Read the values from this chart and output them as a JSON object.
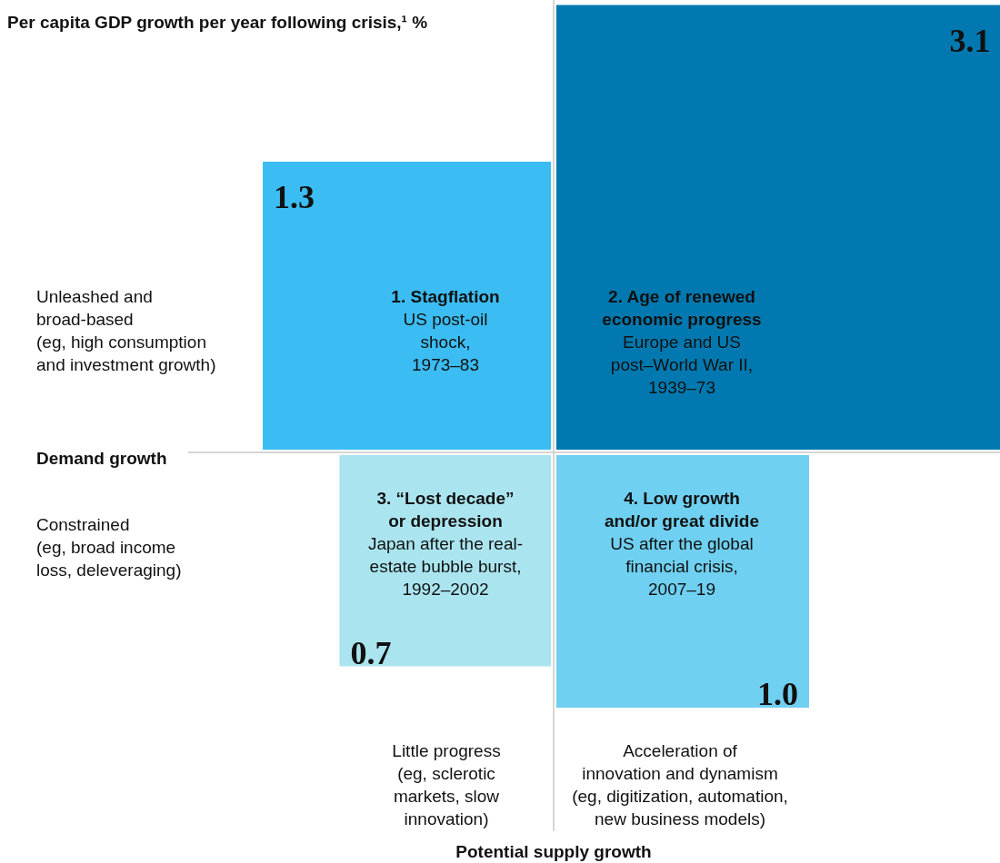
{
  "chart_data": {
    "type": "other",
    "title": "Per capita GDP growth per year following crisis,¹ %",
    "xlabel": "Potential supply growth",
    "ylabel": "Demand growth",
    "categories": [
      "1. Stagflation",
      "2. Age of renewed economic progress",
      "3. “Lost decade” or depression",
      "4. Low growth and/or great divide"
    ],
    "values": [
      1.3,
      3.1,
      0.7,
      1.0
    ],
    "colors": [
      "#3bbdf3",
      "#0179b0",
      "#aae5ef",
      "#6fd0f1"
    ],
    "value_labels": [
      "1.3",
      "3.1",
      "0.7",
      "1.0"
    ],
    "annotations": [
      "US post-oil shock, 1973–83",
      "Europe and US post–World War II, 1939–73",
      "Japan after the real-estate bubble burst, 1992–2002",
      "US after the global financial crisis, 2007–19",
      "Unleashed and broad-based",
      "(eg, high consumption and investment growth)",
      "Constrained",
      "(eg, broad income loss, deleveraging)",
      "Little progress",
      "(eg, sclerotic markets, slow innovation)",
      "Acceleration of innovation and dynamism",
      "(eg, digitization, automation, new business models)"
    ]
  }
}
